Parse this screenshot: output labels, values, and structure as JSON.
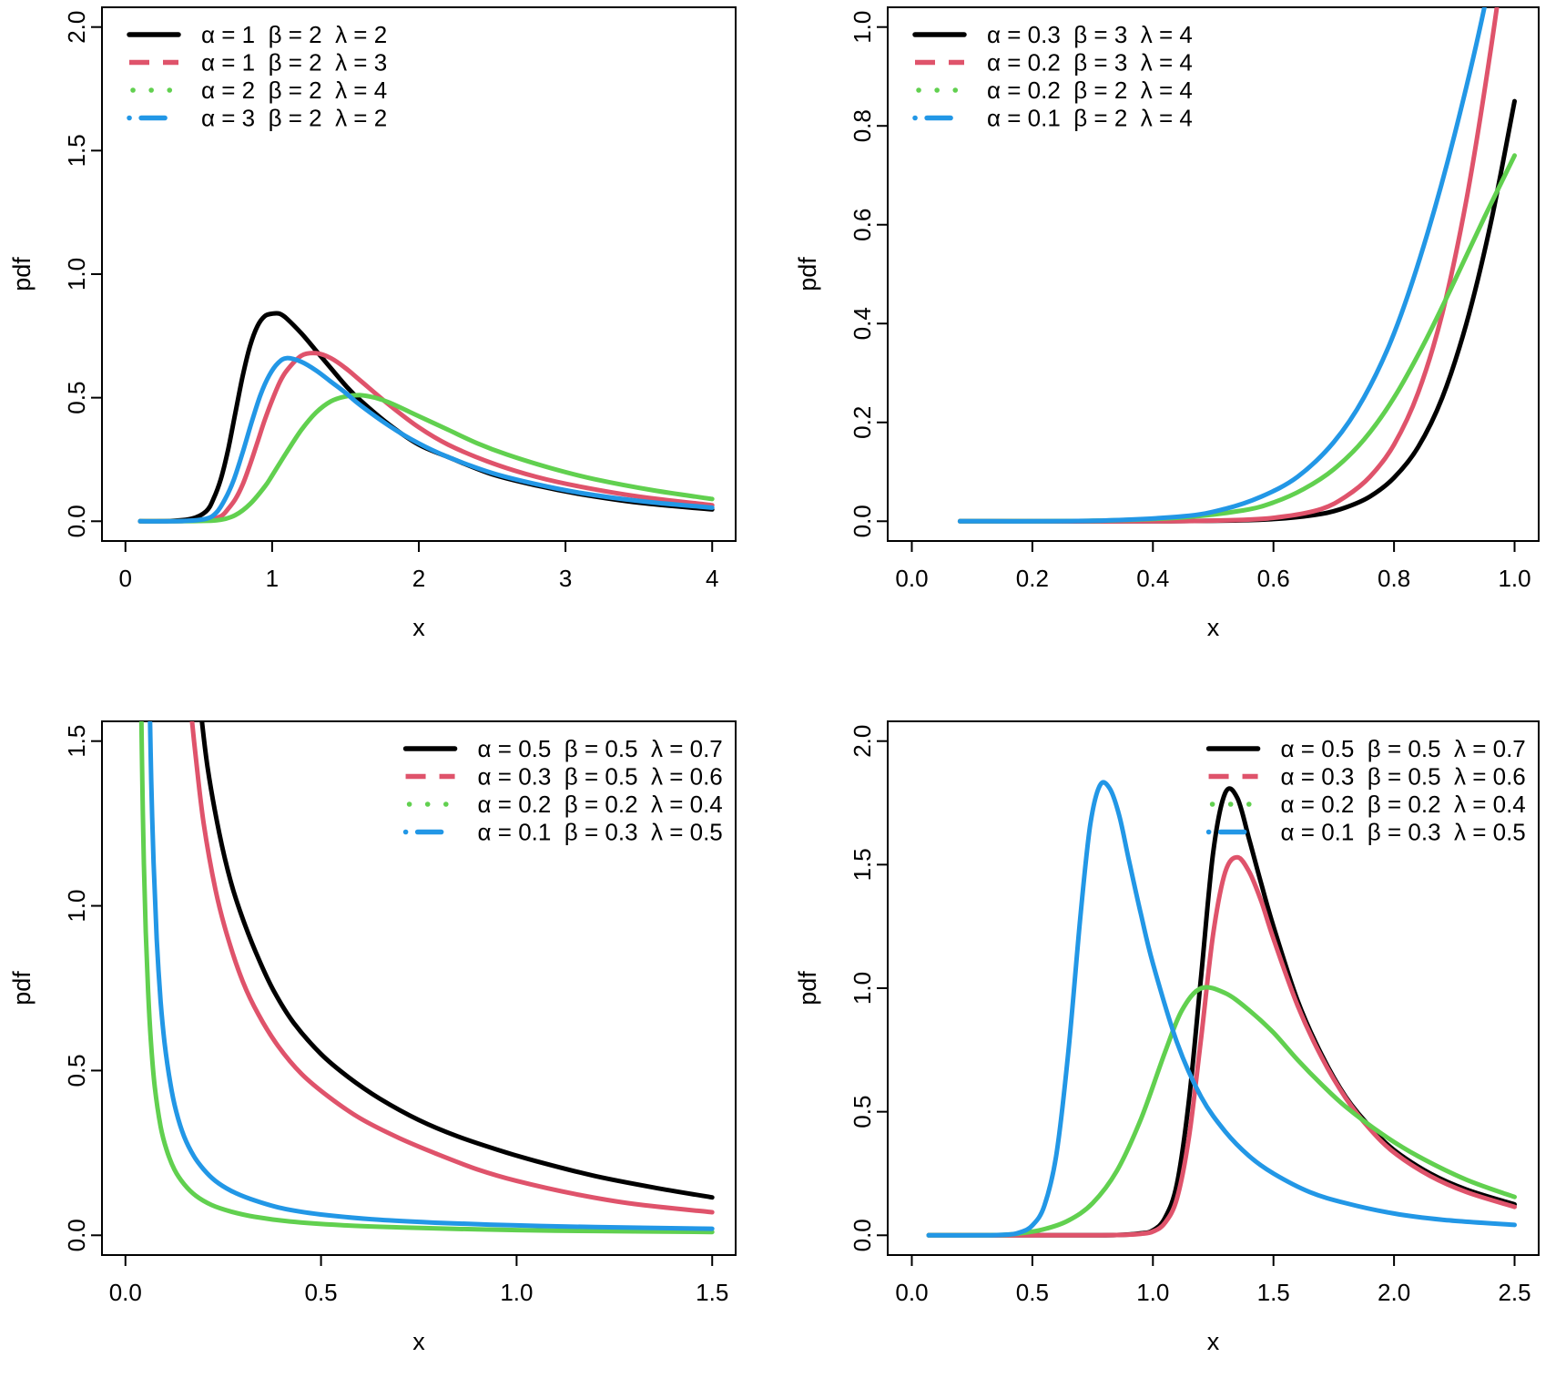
{
  "figure": {
    "background": "#ffffff",
    "colors": {
      "black": "#000000",
      "red": "#DF536B",
      "green": "#61D04F",
      "blue": "#2297E6"
    }
  },
  "chart_data": [
    {
      "id": "top_left",
      "type": "line",
      "title": "",
      "xlabel": "x",
      "ylabel": "pdf",
      "xlim": [
        0,
        4
      ],
      "ylim": [
        0,
        2
      ],
      "grid": false,
      "xticks": [
        0,
        1,
        2,
        3,
        4
      ],
      "xtick_labels": [
        "0",
        "1",
        "2",
        "3",
        "4"
      ],
      "yticks": [
        0.0,
        0.5,
        1.0,
        1.5,
        2.0
      ],
      "ytick_labels": [
        "0.0",
        "0.5",
        "1.0",
        "1.5",
        "2.0"
      ],
      "legend_position": "topleft",
      "series": [
        {
          "label": "α = 1  β = 2  λ = 2",
          "color": "#000000",
          "linetype": "solid",
          "x": [
            0.1,
            0.3,
            0.45,
            0.55,
            0.6,
            0.65,
            0.7,
            0.75,
            0.8,
            0.85,
            0.9,
            0.95,
            1.0,
            1.05,
            1.1,
            1.2,
            1.3,
            1.4,
            1.5,
            1.6,
            1.8,
            2.0,
            2.2,
            2.5,
            2.8,
            3.1,
            3.5,
            4.0
          ],
          "y": [
            0,
            0.001,
            0.01,
            0.04,
            0.09,
            0.17,
            0.29,
            0.44,
            0.59,
            0.71,
            0.79,
            0.83,
            0.84,
            0.84,
            0.82,
            0.76,
            0.69,
            0.62,
            0.55,
            0.49,
            0.39,
            0.31,
            0.26,
            0.19,
            0.145,
            0.11,
            0.075,
            0.048
          ]
        },
        {
          "label": "α = 1  β = 2  λ = 3",
          "color": "#DF536B",
          "linetype": "dashed",
          "x": [
            0.1,
            0.4,
            0.55,
            0.65,
            0.7,
            0.75,
            0.8,
            0.85,
            0.9,
            0.95,
            1.0,
            1.05,
            1.1,
            1.2,
            1.3,
            1.4,
            1.5,
            1.6,
            1.8,
            2.0,
            2.2,
            2.5,
            2.8,
            3.1,
            3.5,
            4.0
          ],
          "y": [
            0,
            0.001,
            0.005,
            0.02,
            0.05,
            0.09,
            0.15,
            0.23,
            0.32,
            0.41,
            0.49,
            0.56,
            0.61,
            0.67,
            0.68,
            0.66,
            0.62,
            0.57,
            0.47,
            0.38,
            0.31,
            0.235,
            0.18,
            0.14,
            0.1,
            0.065
          ]
        },
        {
          "label": "α = 2  β = 2  λ = 4",
          "color": "#61D04F",
          "linetype": "dotted",
          "x": [
            0.1,
            0.5,
            0.65,
            0.75,
            0.85,
            0.95,
            1.0,
            1.1,
            1.2,
            1.3,
            1.4,
            1.5,
            1.6,
            1.7,
            1.8,
            2.0,
            2.2,
            2.4,
            2.6,
            2.9,
            3.2,
            3.6,
            4.0
          ],
          "y": [
            0,
            0.001,
            0.006,
            0.025,
            0.07,
            0.14,
            0.185,
            0.28,
            0.37,
            0.44,
            0.485,
            0.505,
            0.51,
            0.5,
            0.48,
            0.425,
            0.37,
            0.315,
            0.27,
            0.215,
            0.17,
            0.125,
            0.09
          ]
        },
        {
          "label": "α = 3  β = 2  λ = 2",
          "color": "#2297E6",
          "linetype": "dashdot",
          "x": [
            0.1,
            0.4,
            0.55,
            0.62,
            0.68,
            0.74,
            0.8,
            0.86,
            0.92,
            0.98,
            1.04,
            1.1,
            1.2,
            1.3,
            1.4,
            1.5,
            1.6,
            1.8,
            2.0,
            2.2,
            2.5,
            2.8,
            3.1,
            3.5,
            4.0
          ],
          "y": [
            0,
            0.001,
            0.01,
            0.035,
            0.09,
            0.17,
            0.28,
            0.4,
            0.51,
            0.59,
            0.64,
            0.66,
            0.645,
            0.61,
            0.565,
            0.52,
            0.47,
            0.385,
            0.315,
            0.26,
            0.195,
            0.15,
            0.115,
            0.082,
            0.055
          ]
        }
      ]
    },
    {
      "id": "top_right",
      "type": "line",
      "title": "",
      "xlabel": "x",
      "ylabel": "pdf",
      "xlim": [
        0,
        1
      ],
      "ylim": [
        0,
        1
      ],
      "grid": false,
      "xticks": [
        0.0,
        0.2,
        0.4,
        0.6,
        0.8,
        1.0
      ],
      "xtick_labels": [
        "0.0",
        "0.2",
        "0.4",
        "0.6",
        "0.8",
        "1.0"
      ],
      "yticks": [
        0.0,
        0.2,
        0.4,
        0.6,
        0.8,
        1.0
      ],
      "ytick_labels": [
        "0.0",
        "0.2",
        "0.4",
        "0.6",
        "0.8",
        "1.0"
      ],
      "legend_position": "topleft",
      "series": [
        {
          "label": "α = 0.3  β = 3  λ = 4",
          "color": "#000000",
          "linetype": "solid",
          "x": [
            0.08,
            0.4,
            0.55,
            0.62,
            0.68,
            0.72,
            0.76,
            0.8,
            0.84,
            0.88,
            0.92,
            0.96,
            1.0
          ],
          "y": [
            0,
            0,
            0.002,
            0.006,
            0.015,
            0.028,
            0.05,
            0.088,
            0.15,
            0.25,
            0.4,
            0.6,
            0.85
          ]
        },
        {
          "label": "α = 0.2  β = 3  λ = 4",
          "color": "#DF536B",
          "linetype": "dashed",
          "x": [
            0.08,
            0.4,
            0.55,
            0.62,
            0.68,
            0.72,
            0.76,
            0.8,
            0.84,
            0.88,
            0.92,
            0.96,
            1.0
          ],
          "y": [
            0,
            0,
            0.003,
            0.01,
            0.025,
            0.05,
            0.09,
            0.155,
            0.26,
            0.42,
            0.65,
            0.95,
            1.3
          ]
        },
        {
          "label": "α = 0.2  β = 2  λ = 4",
          "color": "#61D04F",
          "linetype": "dotted",
          "x": [
            0.08,
            0.3,
            0.45,
            0.55,
            0.6,
            0.65,
            0.7,
            0.75,
            0.8,
            0.85,
            0.9,
            0.95,
            1.0
          ],
          "y": [
            0,
            0.001,
            0.008,
            0.022,
            0.038,
            0.065,
            0.105,
            0.165,
            0.25,
            0.36,
            0.485,
            0.615,
            0.74
          ]
        },
        {
          "label": "α = 0.1  β = 2  λ = 4",
          "color": "#2297E6",
          "linetype": "dashdot",
          "x": [
            0.08,
            0.3,
            0.45,
            0.52,
            0.58,
            0.64,
            0.7,
            0.75,
            0.8,
            0.85,
            0.9,
            0.95,
            0.99
          ],
          "y": [
            0,
            0.001,
            0.01,
            0.025,
            0.05,
            0.09,
            0.16,
            0.25,
            0.38,
            0.56,
            0.78,
            1.04,
            1.3
          ]
        }
      ]
    },
    {
      "id": "bottom_left",
      "type": "line",
      "title": "",
      "xlabel": "x",
      "ylabel": "pdf",
      "xlim": [
        0,
        1.5
      ],
      "ylim": [
        0,
        1.5
      ],
      "grid": false,
      "xticks": [
        0.0,
        0.5,
        1.0,
        1.5
      ],
      "xtick_labels": [
        "0.0",
        "0.5",
        "1.0",
        "1.5"
      ],
      "yticks": [
        0.0,
        0.5,
        1.0,
        1.5
      ],
      "ytick_labels": [
        "0.0",
        "0.5",
        "1.0",
        "1.5"
      ],
      "legend_position": "topright",
      "series": [
        {
          "label": "α = 0.5  β = 0.5  λ = 0.7",
          "color": "#000000",
          "linetype": "solid",
          "x": [
            0.19,
            0.21,
            0.24,
            0.27,
            0.3,
            0.34,
            0.38,
            0.43,
            0.5,
            0.57,
            0.65,
            0.75,
            0.85,
            0.95,
            1.05,
            1.2,
            1.35,
            1.5
          ],
          "y": [
            1.62,
            1.42,
            1.22,
            1.07,
            0.96,
            0.84,
            0.74,
            0.645,
            0.55,
            0.48,
            0.415,
            0.35,
            0.3,
            0.26,
            0.225,
            0.18,
            0.145,
            0.115
          ]
        },
        {
          "label": "α = 0.3  β = 0.5  λ = 0.6",
          "color": "#DF536B",
          "linetype": "dashed",
          "x": [
            0.165,
            0.18,
            0.2,
            0.23,
            0.26,
            0.3,
            0.34,
            0.39,
            0.45,
            0.52,
            0.6,
            0.7,
            0.8,
            0.9,
            1.0,
            1.15,
            1.3,
            1.5
          ],
          "y": [
            1.62,
            1.45,
            1.25,
            1.05,
            0.91,
            0.77,
            0.67,
            0.575,
            0.49,
            0.42,
            0.355,
            0.295,
            0.245,
            0.2,
            0.165,
            0.125,
            0.095,
            0.07
          ]
        },
        {
          "label": "α = 0.2  β = 0.2  λ = 0.4",
          "color": "#61D04F",
          "linetype": "dotted",
          "x": [
            0.04,
            0.043,
            0.047,
            0.052,
            0.058,
            0.065,
            0.075,
            0.09,
            0.105,
            0.125,
            0.15,
            0.18,
            0.22,
            0.27,
            0.33,
            0.42,
            0.55,
            0.7,
            0.9,
            1.1,
            1.3,
            1.5
          ],
          "y": [
            1.62,
            1.38,
            1.13,
            0.92,
            0.74,
            0.59,
            0.45,
            0.33,
            0.26,
            0.2,
            0.155,
            0.12,
            0.092,
            0.072,
            0.056,
            0.042,
            0.031,
            0.024,
            0.018,
            0.014,
            0.012,
            0.01
          ]
        },
        {
          "label": "α = 0.1  β = 0.3  λ = 0.5",
          "color": "#2297E6",
          "linetype": "dashdot",
          "x": [
            0.062,
            0.066,
            0.072,
            0.08,
            0.09,
            0.1,
            0.115,
            0.13,
            0.15,
            0.175,
            0.2,
            0.23,
            0.27,
            0.32,
            0.4,
            0.5,
            0.65,
            0.8,
            1.0,
            1.2,
            1.5
          ],
          "y": [
            1.62,
            1.38,
            1.13,
            0.9,
            0.71,
            0.585,
            0.46,
            0.375,
            0.3,
            0.24,
            0.2,
            0.165,
            0.135,
            0.11,
            0.082,
            0.063,
            0.047,
            0.038,
            0.03,
            0.025,
            0.02
          ]
        }
      ]
    },
    {
      "id": "bottom_right",
      "type": "line",
      "title": "",
      "xlabel": "x",
      "ylabel": "pdf",
      "xlim": [
        0,
        2.5
      ],
      "ylim": [
        0,
        2
      ],
      "grid": false,
      "xticks": [
        0.0,
        0.5,
        1.0,
        1.5,
        2.0,
        2.5
      ],
      "xtick_labels": [
        "0.0",
        "0.5",
        "1.0",
        "1.5",
        "2.0",
        "2.5"
      ],
      "yticks": [
        0.0,
        0.5,
        1.0,
        1.5,
        2.0
      ],
      "ytick_labels": [
        "0.0",
        "0.5",
        "1.0",
        "1.5",
        "2.0"
      ],
      "legend_position": "topright",
      "series": [
        {
          "label": "α = 0.5  β = 0.5  λ = 0.7",
          "color": "#000000",
          "linetype": "solid",
          "x": [
            0.07,
            0.6,
            0.85,
            0.95,
            1.0,
            1.05,
            1.1,
            1.15,
            1.2,
            1.25,
            1.3,
            1.35,
            1.4,
            1.45,
            1.5,
            1.6,
            1.7,
            1.8,
            1.9,
            2.0,
            2.15,
            2.3,
            2.5
          ],
          "y": [
            0,
            0,
            0.001,
            0.008,
            0.02,
            0.07,
            0.21,
            0.55,
            1.05,
            1.55,
            1.79,
            1.77,
            1.6,
            1.42,
            1.25,
            0.95,
            0.73,
            0.56,
            0.44,
            0.345,
            0.25,
            0.185,
            0.125
          ]
        },
        {
          "label": "α = 0.3  β = 0.5  λ = 0.6",
          "color": "#DF536B",
          "linetype": "dashed",
          "x": [
            0.07,
            0.6,
            0.85,
            0.95,
            1.0,
            1.05,
            1.1,
            1.15,
            1.2,
            1.25,
            1.3,
            1.35,
            1.4,
            1.45,
            1.5,
            1.6,
            1.7,
            1.8,
            1.9,
            2.0,
            2.15,
            2.3,
            2.5
          ],
          "y": [
            0,
            0,
            0.001,
            0.006,
            0.015,
            0.05,
            0.15,
            0.4,
            0.8,
            1.22,
            1.47,
            1.53,
            1.47,
            1.35,
            1.2,
            0.93,
            0.72,
            0.555,
            0.43,
            0.335,
            0.24,
            0.175,
            0.115
          ]
        },
        {
          "label": "α = 0.2  β = 0.2  λ = 0.4",
          "color": "#61D04F",
          "linetype": "dotted",
          "x": [
            0.07,
            0.35,
            0.45,
            0.55,
            0.65,
            0.75,
            0.85,
            0.95,
            1.05,
            1.12,
            1.2,
            1.3,
            1.4,
            1.5,
            1.6,
            1.7,
            1.8,
            1.95,
            2.1,
            2.3,
            2.5
          ],
          "y": [
            0,
            0.001,
            0.008,
            0.025,
            0.06,
            0.13,
            0.26,
            0.47,
            0.74,
            0.91,
            1.0,
            0.98,
            0.91,
            0.82,
            0.71,
            0.61,
            0.52,
            0.41,
            0.32,
            0.225,
            0.155
          ]
        },
        {
          "label": "α = 0.1  β = 0.3  λ = 0.5",
          "color": "#2297E6",
          "linetype": "dashdot",
          "x": [
            0.07,
            0.3,
            0.4,
            0.45,
            0.5,
            0.55,
            0.6,
            0.65,
            0.7,
            0.74,
            0.78,
            0.82,
            0.86,
            0.9,
            0.95,
            1.0,
            1.1,
            1.2,
            1.3,
            1.4,
            1.5,
            1.65,
            1.8,
            2.0,
            2.2,
            2.5
          ],
          "y": [
            0,
            0,
            0.003,
            0.012,
            0.04,
            0.12,
            0.33,
            0.75,
            1.3,
            1.66,
            1.82,
            1.81,
            1.7,
            1.52,
            1.3,
            1.1,
            0.78,
            0.56,
            0.42,
            0.32,
            0.25,
            0.175,
            0.13,
            0.088,
            0.063,
            0.042
          ]
        }
      ]
    }
  ]
}
